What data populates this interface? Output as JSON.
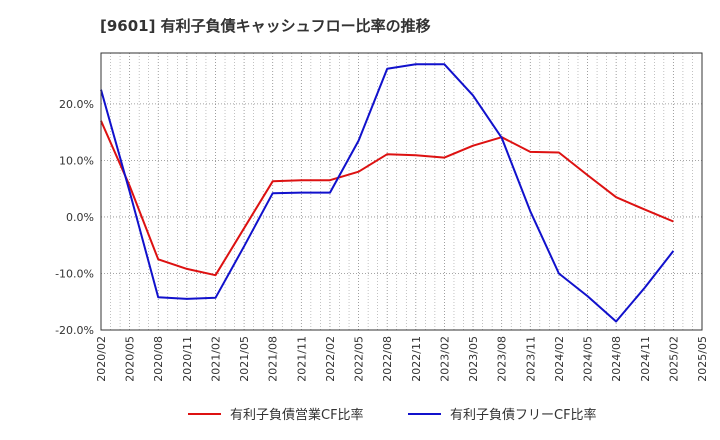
{
  "chart_data": {
    "type": "line",
    "title": "[9601]  有利子負債キャッシュフロー比率の推移",
    "xlabel": "",
    "ylabel": "",
    "x": [
      "2020/02",
      "2020/05",
      "2020/08",
      "2020/11",
      "2021/02",
      "2021/05",
      "2021/08",
      "2021/11",
      "2022/02",
      "2022/05",
      "2022/08",
      "2022/11",
      "2023/02",
      "2023/05",
      "2023/08",
      "2023/11",
      "2024/02",
      "2024/05",
      "2024/08",
      "2024/11",
      "2025/02",
      "2025/05"
    ],
    "y_ticks": [
      "-20.0%",
      "-10.0%",
      "0.0%",
      "10.0%",
      "20.0%"
    ],
    "ylim": [
      -20,
      29
    ],
    "grid": true,
    "legend_position": "bottom",
    "series": [
      {
        "name": "有利子負債営業CF比率",
        "color": "#dd1111",
        "values": [
          17.0,
          5.5,
          -7.5,
          -9.2,
          -10.3,
          -2.0,
          6.3,
          6.5,
          6.5,
          8.0,
          11.1,
          10.9,
          10.5,
          12.6,
          14.1,
          11.5,
          11.4,
          7.4,
          3.5,
          1.3,
          -0.8,
          null
        ]
      },
      {
        "name": "有利子負債フリーCF比率",
        "color": "#1111cc",
        "values": [
          22.5,
          4.5,
          -14.2,
          -14.5,
          -14.3,
          -5.2,
          4.2,
          4.3,
          4.3,
          13.5,
          26.2,
          27.0,
          27.0,
          21.5,
          14.0,
          1.0,
          -10.0,
          -14.0,
          -18.5,
          -12.5,
          -6.0,
          null
        ]
      }
    ]
  }
}
